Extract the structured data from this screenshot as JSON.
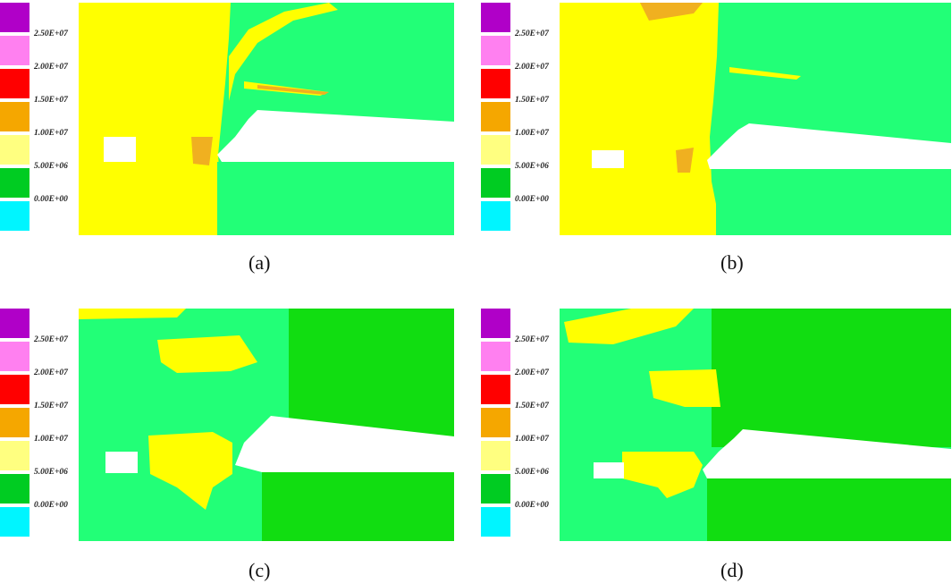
{
  "legend": {
    "colors": [
      "#b000c8",
      "#ff80f0",
      "#ff0000",
      "#f5a700",
      "#ffff80",
      "#00cc22",
      "#00f5ff"
    ],
    "labels": [
      "2.50E+07",
      "2.00E+07",
      "1.50E+07",
      "1.00E+07",
      "5.00E+06",
      "0.00E+00"
    ]
  },
  "field_colors": {
    "yellow": "#ffff00",
    "orange": "#f0b020",
    "light_green": "#22ff77",
    "green": "#11dd11",
    "white": "#ffffff"
  },
  "panels": [
    {
      "caption": "(a)"
    },
    {
      "caption": "(b)"
    },
    {
      "caption": "(c)"
    },
    {
      "caption": "(d)"
    }
  ]
}
